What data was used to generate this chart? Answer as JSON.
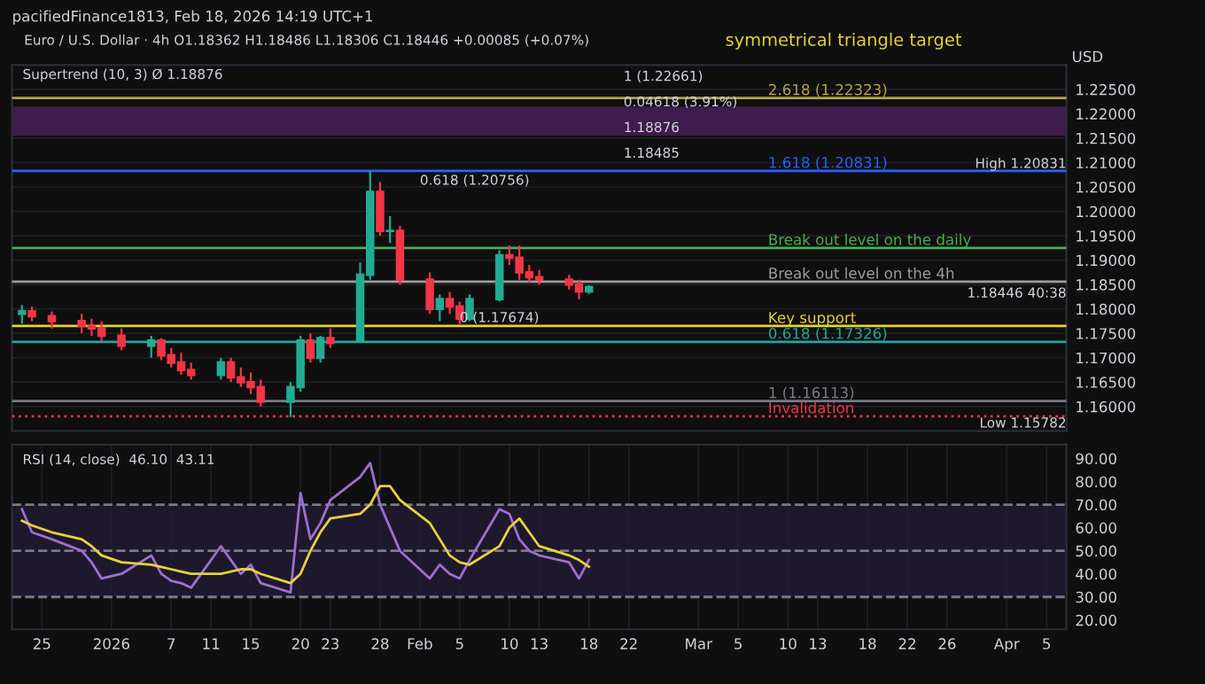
{
  "chart_data": [
    {
      "type": "candlestick",
      "title": "Euro / U.S. Dollar · 4h",
      "subtitle": "O1.18362 H1.18486 L1.18306 C1.18446 +0.00085 (+0.07%)",
      "x": [
        "2025-12-23",
        "2025-12-24",
        "2025-12-26",
        "2025-12-29",
        "2025-12-30",
        "2025-12-31",
        "2026-01-02",
        "2026-01-05",
        "2026-01-06",
        "2026-01-07",
        "2026-01-08",
        "2026-01-09",
        "2026-01-12",
        "2026-01-13",
        "2026-01-14",
        "2026-01-15",
        "2026-01-16",
        "2026-01-19",
        "2026-01-20",
        "2026-01-21",
        "2026-01-22",
        "2026-01-23",
        "2026-01-26",
        "2026-01-27",
        "2026-01-28",
        "2026-01-29",
        "2026-01-30",
        "2026-02-02",
        "2026-02-03",
        "2026-02-04",
        "2026-02-05",
        "2026-02-06",
        "2026-02-09",
        "2026-02-10",
        "2026-02-11",
        "2026-02-12",
        "2026-02-13",
        "2026-02-16",
        "2026-02-17",
        "2026-02-18"
      ],
      "ohlc": [
        [
          1.179,
          1.1808,
          1.177,
          1.1795
        ],
        [
          1.1795,
          1.1805,
          1.1775,
          1.1785
        ],
        [
          1.1785,
          1.1795,
          1.176,
          1.1775
        ],
        [
          1.1775,
          1.179,
          1.175,
          1.1765
        ],
        [
          1.1765,
          1.178,
          1.1745,
          1.176
        ],
        [
          1.176,
          1.1775,
          1.1735,
          1.1745
        ],
        [
          1.1745,
          1.176,
          1.1715,
          1.1725
        ],
        [
          1.1725,
          1.1745,
          1.17,
          1.1735
        ],
        [
          1.1735,
          1.174,
          1.1695,
          1.1705
        ],
        [
          1.1705,
          1.172,
          1.168,
          1.169
        ],
        [
          1.169,
          1.171,
          1.1665,
          1.1675
        ],
        [
          1.1675,
          1.169,
          1.1655,
          1.1665
        ],
        [
          1.1665,
          1.17,
          1.1655,
          1.169
        ],
        [
          1.169,
          1.17,
          1.165,
          1.166
        ],
        [
          1.166,
          1.168,
          1.164,
          1.165
        ],
        [
          1.165,
          1.167,
          1.1625,
          1.164
        ],
        [
          1.164,
          1.1655,
          1.16,
          1.161
        ],
        [
          1.161,
          1.165,
          1.15782,
          1.164
        ],
        [
          1.164,
          1.1745,
          1.163,
          1.1735
        ],
        [
          1.1735,
          1.175,
          1.169,
          1.17
        ],
        [
          1.17,
          1.1745,
          1.169,
          1.174
        ],
        [
          1.174,
          1.176,
          1.172,
          1.173
        ],
        [
          1.1735,
          1.1895,
          1.173,
          1.187
        ],
        [
          1.187,
          1.20831,
          1.186,
          1.204
        ],
        [
          1.204,
          1.206,
          1.195,
          1.196
        ],
        [
          1.196,
          1.199,
          1.1935,
          1.196
        ],
        [
          1.196,
          1.197,
          1.185,
          1.186
        ],
        [
          1.186,
          1.1875,
          1.179,
          1.18
        ],
        [
          1.18,
          1.183,
          1.1775,
          1.182
        ],
        [
          1.182,
          1.1835,
          1.179,
          1.1805
        ],
        [
          1.1805,
          1.1815,
          1.17674,
          1.178
        ],
        [
          1.178,
          1.183,
          1.1775,
          1.182
        ],
        [
          1.182,
          1.192,
          1.1815,
          1.191
        ],
        [
          1.191,
          1.193,
          1.189,
          1.1905
        ],
        [
          1.1905,
          1.193,
          1.186,
          1.1875
        ],
        [
          1.1875,
          1.189,
          1.1855,
          1.1865
        ],
        [
          1.1865,
          1.188,
          1.185,
          1.186
        ],
        [
          1.186,
          1.187,
          1.184,
          1.185
        ],
        [
          1.185,
          1.186,
          1.182,
          1.18362
        ],
        [
          1.18362,
          1.18486,
          1.18306,
          1.18446
        ]
      ],
      "colors": [
        "#22ab94",
        "#f23645",
        "#f23645",
        "#f23645",
        "#f23645",
        "#f23645",
        "#f23645",
        "#22ab94",
        "#f23645",
        "#f23645",
        "#f23645",
        "#f23645",
        "#22ab94",
        "#f23645",
        "#f23645",
        "#f23645",
        "#f23645",
        "#22ab94",
        "#22ab94",
        "#f23645",
        "#22ab94",
        "#f23645",
        "#22ab94",
        "#22ab94",
        "#f23645",
        "#22ab94",
        "#f23645",
        "#f23645",
        "#22ab94",
        "#f23645",
        "#f23645",
        "#22ab94",
        "#22ab94",
        "#f23645",
        "#f23645",
        "#f23645",
        "#f23645",
        "#f23645",
        "#f23645",
        "#22ab94"
      ],
      "xlim": [
        "2025-12-22",
        "2026-04-07"
      ],
      "ylim": [
        1.155,
        1.23
      ],
      "yticks": [
        {
          "value": 1.16,
          "label": "1.16000"
        },
        {
          "value": 1.165,
          "label": "1.16500"
        },
        {
          "value": 1.17,
          "label": "1.17000"
        },
        {
          "value": 1.175,
          "label": "1.17500"
        },
        {
          "value": 1.18,
          "label": "1.18000"
        },
        {
          "value": 1.185,
          "label": "1.18500"
        },
        {
          "value": 1.19,
          "label": "1.19000"
        },
        {
          "value": 1.195,
          "label": "1.19500"
        },
        {
          "value": 1.2,
          "label": "1.20000"
        },
        {
          "value": 1.205,
          "label": "1.20500"
        },
        {
          "value": 1.21,
          "label": "1.21000"
        },
        {
          "value": 1.215,
          "label": "1.21500"
        },
        {
          "value": 1.22,
          "label": "1.22000"
        },
        {
          "value": 1.225,
          "label": "1.22500"
        }
      ],
      "tick_labels": "y",
      "grid": true,
      "legend": false,
      "ylabel": "USD",
      "ref_lines": [
        {
          "axis": "y",
          "value": 1.22323,
          "label": "2.618 (1.22323)",
          "color": "#b8a14a",
          "line_style": "solid"
        },
        {
          "axis": "y",
          "value": 1.20831,
          "label": "1.618 (1.20831)",
          "color": "#2962ff",
          "line_style": "solid"
        },
        {
          "axis": "y",
          "value": 1.1925,
          "label": "Break out level on the daily",
          "color": "#4caf50",
          "line_style": "solid"
        },
        {
          "axis": "y",
          "value": 1.1856,
          "label": "Break out level on the 4h",
          "color": "#9e9e9e",
          "line_style": "solid"
        },
        {
          "axis": "y",
          "value": 1.1765,
          "label": "Key support",
          "color": "#e6d23a",
          "line_style": "solid"
        },
        {
          "axis": "y",
          "value": 1.17326,
          "label": "0.618 (1.17326)",
          "color": "#26a69a",
          "line_style": "solid"
        },
        {
          "axis": "y",
          "value": 1.16113,
          "label": "1 (1.16113)",
          "color": "#787b86",
          "line_style": "solid"
        },
        {
          "axis": "y",
          "value": 1.158,
          "label": "Invalidation",
          "color": "#f23645",
          "line_style": "dotted"
        }
      ],
      "bands": [
        {
          "axis": "y",
          "from": 1.2155,
          "to": 1.2215,
          "color": "#4a1f5c"
        }
      ],
      "annotations": [
        "pacifiedFinance1813, Feb 18, 2026 14:19 UTC+1",
        "Supertrend (10, 3) Ø 1.18876",
        "symmetrical triangle target",
        "1 (1.22661)",
        "0.04618 (3.91%)",
        "1.18876",
        "1.18485",
        {
          "text": "0.618 (1.20756)",
          "x": "2026-02-01",
          "y": 1.20756
        },
        {
          "text": "0 (1.17674)",
          "x": "2026-02-05",
          "y": 1.17674
        },
        {
          "text": "High 1.20831",
          "x": "2026-04-07",
          "y": 1.20831
        },
        {
          "text": "1.18446 40:38",
          "x": "2026-04-07",
          "y": 1.18446
        },
        {
          "text": "Low 1.15782",
          "x": "2026-04-07",
          "y": 1.15782
        }
      ]
    },
    {
      "type": "line",
      "title": "RSI (14, close)",
      "x": [
        "2025-12-23",
        "2025-12-24",
        "2025-12-26",
        "2025-12-29",
        "2025-12-30",
        "2025-12-31",
        "2026-01-02",
        "2026-01-05",
        "2026-01-06",
        "2026-01-07",
        "2026-01-08",
        "2026-01-09",
        "2026-01-12",
        "2026-01-13",
        "2026-01-14",
        "2026-01-15",
        "2026-01-16",
        "2026-01-19",
        "2026-01-20",
        "2026-01-21",
        "2026-01-22",
        "2026-01-23",
        "2026-01-26",
        "2026-01-27",
        "2026-01-28",
        "2026-01-29",
        "2026-01-30",
        "2026-02-02",
        "2026-02-03",
        "2026-02-04",
        "2026-02-05",
        "2026-02-06",
        "2026-02-09",
        "2026-02-10",
        "2026-02-11",
        "2026-02-12",
        "2026-02-13",
        "2026-02-16",
        "2026-02-17",
        "2026-02-18"
      ],
      "series": [
        {
          "color": "#9c6fd0",
          "values": [
            68,
            58,
            55,
            50,
            45,
            38,
            40,
            48,
            40,
            37,
            36,
            34,
            52,
            46,
            40,
            44,
            36,
            32,
            75,
            55,
            62,
            72,
            82,
            88,
            70,
            60,
            50,
            38,
            44,
            40,
            38,
            46,
            68,
            66,
            55,
            50,
            48,
            45,
            38,
            46.1
          ]
        },
        {
          "color": "#e6d23a",
          "values": [
            63,
            61,
            58,
            55,
            52,
            48,
            45,
            44,
            43,
            42,
            41,
            40,
            40,
            41,
            42,
            42,
            40,
            36,
            40,
            50,
            58,
            64,
            66,
            70,
            78,
            78,
            72,
            62,
            55,
            48,
            45,
            44,
            52,
            60,
            64,
            58,
            52,
            48,
            46,
            43.11
          ]
        }
      ],
      "xlim": [
        "2025-12-22",
        "2026-04-07"
      ],
      "xticks": [
        {
          "value": "2025-12-25",
          "label": "25"
        },
        {
          "value": "2026-01-01",
          "label": "2026"
        },
        {
          "value": "2026-01-07",
          "label": "7"
        },
        {
          "value": "2026-01-11",
          "label": "11"
        },
        {
          "value": "2026-01-15",
          "label": "15"
        },
        {
          "value": "2026-01-20",
          "label": "20"
        },
        {
          "value": "2026-01-23",
          "label": "23"
        },
        {
          "value": "2026-01-28",
          "label": "28"
        },
        {
          "value": "2026-02-01",
          "label": "Feb"
        },
        {
          "value": "2026-02-05",
          "label": "5"
        },
        {
          "value": "2026-02-10",
          "label": "10"
        },
        {
          "value": "2026-02-13",
          "label": "13"
        },
        {
          "value": "2026-02-18",
          "label": "18"
        },
        {
          "value": "2026-02-22",
          "label": "22"
        },
        {
          "value": "2026-03-01",
          "label": "Mar"
        },
        {
          "value": "2026-03-05",
          "label": "5"
        },
        {
          "value": "2026-03-10",
          "label": "10"
        },
        {
          "value": "2026-03-13",
          "label": "13"
        },
        {
          "value": "2026-03-18",
          "label": "18"
        },
        {
          "value": "2026-03-22",
          "label": "22"
        },
        {
          "value": "2026-03-26",
          "label": "26"
        },
        {
          "value": "2026-04-01",
          "label": "Apr"
        },
        {
          "value": "2026-04-05",
          "label": "5"
        }
      ],
      "ylim": [
        16,
        96
      ],
      "yticks": [
        {
          "value": 20,
          "label": "20.00"
        },
        {
          "value": 30,
          "label": "30.00"
        },
        {
          "value": 40,
          "label": "40.00"
        },
        {
          "value": 50,
          "label": "50.00"
        },
        {
          "value": 60,
          "label": "60.00"
        },
        {
          "value": 70,
          "label": "70.00"
        },
        {
          "value": 80,
          "label": "80.00"
        },
        {
          "value": 90,
          "label": "90.00"
        }
      ],
      "grid": "x",
      "legend": false,
      "marker": "none",
      "line_style": "solid",
      "ref_lines": [
        {
          "axis": "y",
          "value": 70,
          "color": "#787b86",
          "line_style": "dashed"
        },
        {
          "axis": "y",
          "value": 50,
          "color": "#787b86",
          "line_style": "dashed"
        },
        {
          "axis": "y",
          "value": 30,
          "color": "#787b86",
          "line_style": "dashed"
        }
      ],
      "bands": [
        {
          "axis": "y",
          "from": 30,
          "to": 70,
          "color": "#221a35"
        }
      ],
      "annotations": [
        "46.10",
        "43.11"
      ]
    }
  ]
}
